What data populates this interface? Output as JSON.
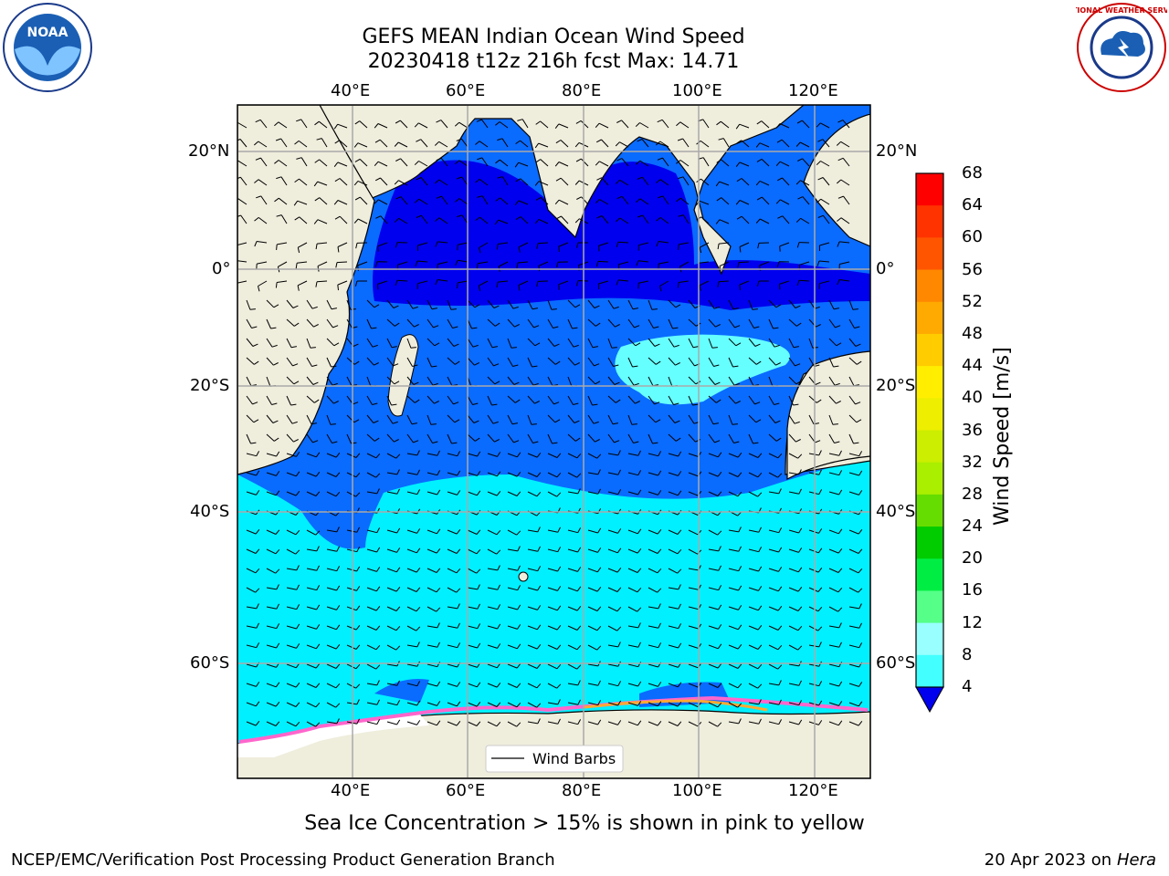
{
  "header": {
    "title_line1": "GEFS MEAN Indian Ocean Wind Speed",
    "title_line2": "20230418 t12z 216h fcst   Max: 14.71"
  },
  "logos": {
    "left": {
      "icon": "noaa-logo-icon",
      "text": "NOAA"
    },
    "right": {
      "icon": "nws-logo-icon",
      "ring_text": "NATIONAL WEATHER SERVICE"
    }
  },
  "map": {
    "lon_ticks": [
      "40°E",
      "60°E",
      "80°E",
      "100°E",
      "120°E"
    ],
    "lat_ticks": [
      "20°N",
      "0°",
      "20°S",
      "40°S",
      "60°S"
    ],
    "legend_label": "Wind Barbs",
    "colors": {
      "land": "#efeddc",
      "low": "#0000ee",
      "mid": "#0a6bff",
      "high": "#00f0ff",
      "ice": "#ff66cc"
    }
  },
  "colorbar": {
    "label": "Wind Speed [m/s]",
    "ticks": [
      "68",
      "64",
      "60",
      "56",
      "52",
      "48",
      "44",
      "40",
      "36",
      "32",
      "28",
      "24",
      "20",
      "16",
      "12",
      "8",
      "4"
    ],
    "colors": [
      "#ff0000",
      "#ff3300",
      "#ff5500",
      "#ff8800",
      "#ffaa00",
      "#ffcc00",
      "#ffee00",
      "#eeee00",
      "#ccee00",
      "#aaee00",
      "#66dd00",
      "#00cc00",
      "#00ee44",
      "#55ff88",
      "#99ffff",
      "#44ffff",
      "#00ffff",
      "#0077ff"
    ],
    "underflow_color": "#0000ee"
  },
  "footer": {
    "sea_ice_note": "Sea Ice Concentration > 15% is shown in pink to yellow",
    "left": "NCEP/EMC/Verification Post Processing Product Generation Branch",
    "date": "20 Apr 2023 on ",
    "host": "Hera"
  }
}
